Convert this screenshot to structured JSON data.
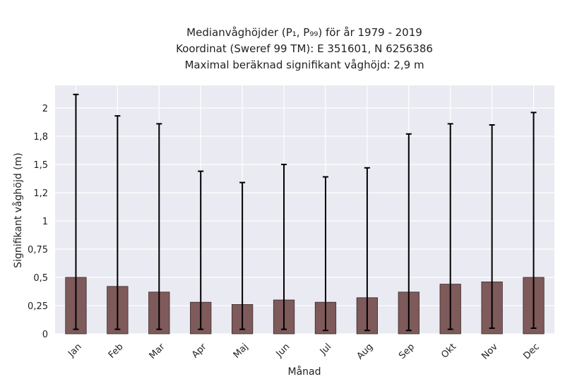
{
  "chart_data": {
    "type": "bar",
    "title_lines": [
      "Medianvåghöjder (P₁, P₉₉) för år 1979 - 2019",
      "Koordinat (Sweref 99 TM): E 351601, N 6256386",
      "Maximal beräknad signifikant våghöjd: 2,9 m"
    ],
    "xlabel": "Månad",
    "ylabel": "Signifikant våghöjd (m)",
    "categories": [
      "Jan",
      "Feb",
      "Mar",
      "Apr",
      "Maj",
      "Jun",
      "Jul",
      "Aug",
      "Sep",
      "Okt",
      "Nov",
      "Dec"
    ],
    "values": [
      0.5,
      0.42,
      0.37,
      0.28,
      0.26,
      0.3,
      0.28,
      0.32,
      0.37,
      0.44,
      0.46,
      0.5
    ],
    "p1": [
      0.04,
      0.04,
      0.04,
      0.04,
      0.04,
      0.04,
      0.03,
      0.03,
      0.03,
      0.04,
      0.05,
      0.05
    ],
    "p99": [
      2.12,
      1.93,
      1.86,
      1.44,
      1.34,
      1.5,
      1.39,
      1.47,
      1.77,
      1.86,
      1.85,
      1.96
    ],
    "ylim": [
      0,
      2.2
    ],
    "yticks": [
      0,
      0.25,
      0.5,
      0.75,
      1,
      1.25,
      1.5,
      1.75,
      2
    ],
    "ytick_labels": [
      "0",
      "0,25",
      "0,5",
      "0,75",
      "1",
      "1,2",
      "1,5",
      "1,8",
      "2"
    ],
    "grid": true,
    "colors": {
      "bar": "#7e5a5b",
      "bar_edge": "#3a2a2a",
      "errorbar": "#000000",
      "plot_bg": "#eaeaf2",
      "grid": "#ffffff"
    }
  }
}
